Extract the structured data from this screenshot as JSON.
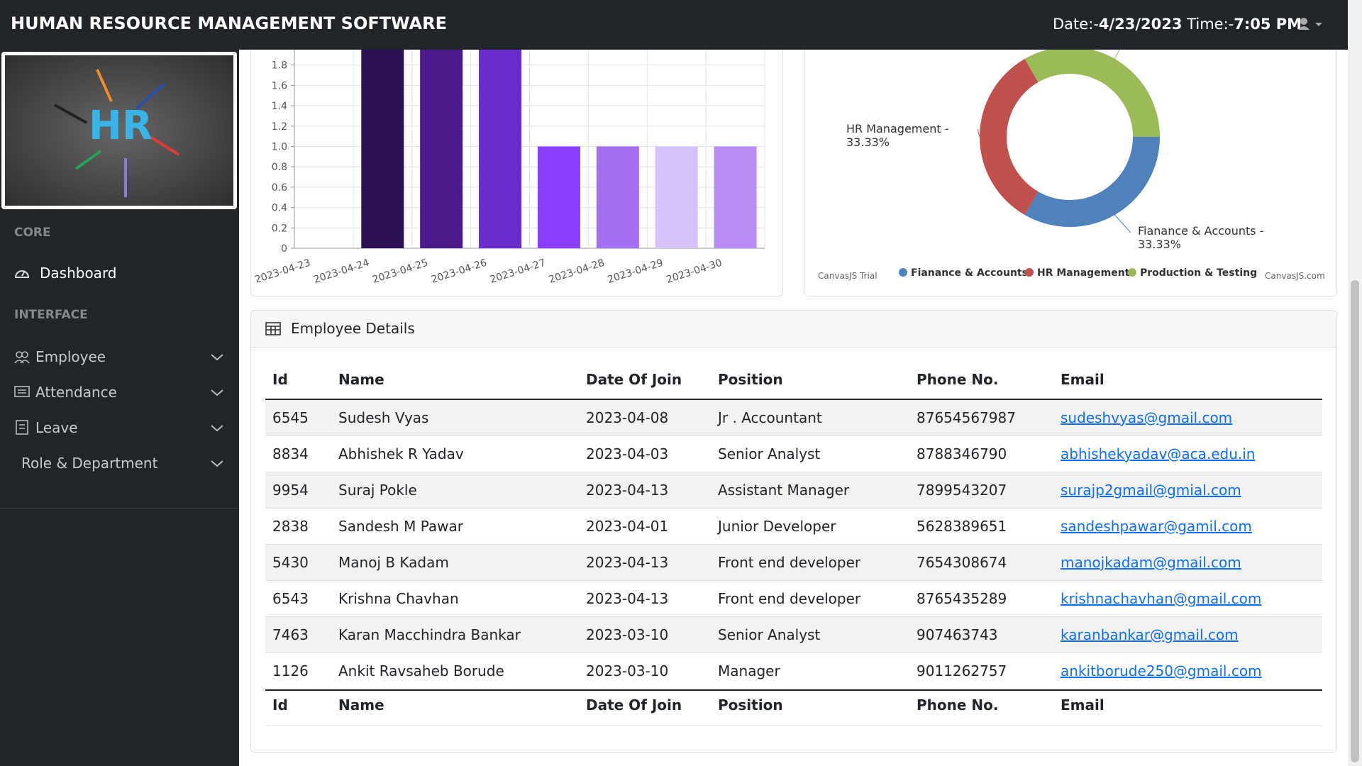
{
  "header": {
    "title": "HUMAN RESOURCE MANAGEMENT SOFTWARE",
    "date_label": "Date:-",
    "date": "4/23/2023",
    "time_label": "Time:-",
    "time": "7:05 PM"
  },
  "sidebar": {
    "logo_text": "HR",
    "sections": [
      {
        "heading": "CORE",
        "items": [
          "Dashboard"
        ]
      },
      {
        "heading": "INTERFACE",
        "items": [
          "Employee",
          "Attendance",
          "Leave",
          "Role & Department"
        ]
      }
    ]
  },
  "chart_data": [
    {
      "type": "bar",
      "categories": [
        "2023-04-23",
        "2023-04-24",
        "2023-04-25",
        "2023-04-26",
        "2023-04-27",
        "2023-04-28",
        "2023-04-29",
        "2023-04-30"
      ],
      "values": [
        0,
        2,
        2,
        2,
        1,
        1,
        1,
        1
      ],
      "colors": [
        "#1f0a3d",
        "#2c1157",
        "#4a1a8a",
        "#6a2ccc",
        "#8b3dff",
        "#a36ef2",
        "#d6c3fb",
        "#ba8cf7"
      ],
      "ylim": [
        0,
        2
      ],
      "yticks": [
        0,
        0.2,
        0.4,
        0.6,
        0.8,
        {
          "value": 1,
          "label": "1.0"
        },
        1.2,
        1.4,
        1.6,
        1.8
      ],
      "grid": true
    },
    {
      "type": "doughnut",
      "categories": [
        "Fianance & Accounts",
        "HR Management",
        "Production & Testing"
      ],
      "values": [
        33.33,
        33.33,
        33.33
      ],
      "colors": [
        "#4f81bc",
        "#c0504d",
        "#9bbb59"
      ],
      "index_labels": [
        "Fianance & Accounts - 33.33%",
        "HR Management - 33.33%"
      ],
      "watermark": "CanvasJS Trial",
      "credit": "CanvasJS.com"
    }
  ],
  "table": {
    "title": "Employee Details",
    "columns": [
      "Id",
      "Name",
      "Date Of Join",
      "Position",
      "Phone No.",
      "Email"
    ],
    "rows": [
      [
        "6545",
        "Sudesh Vyas",
        "2023-04-08",
        "Jr . Accountant",
        "87654567987",
        "sudeshvyas@gmail.com"
      ],
      [
        "8834",
        "Abhishek R Yadav",
        "2023-04-03",
        "Senior Analyst",
        "8788346790",
        "abhishekyadav@aca.edu.in"
      ],
      [
        "9954",
        "Suraj Pokle",
        "2023-04-13",
        "Assistant Manager",
        "7899543207",
        "surajp2gmail@gmial.com"
      ],
      [
        "2838",
        "Sandesh M Pawar",
        "2023-04-01",
        "Junior Developer",
        "5628389651",
        "sandeshpawar@gamil.com"
      ],
      [
        "5430",
        "Manoj B Kadam",
        "2023-04-13",
        "Front end developer",
        "7654308674",
        "manojkadam@gmail.com"
      ],
      [
        "6543",
        "Krishna Chavhan",
        "2023-04-13",
        "Front end developer",
        "8765435289",
        "krishnachavhan@gmail.com"
      ],
      [
        "7463",
        "Karan Macchindra Bankar",
        "2023-03-10",
        "Senior Analyst",
        "907463743",
        "karanbankar@gmail.com"
      ],
      [
        "1126",
        "Ankit Ravsaheb Borude",
        "2023-03-10",
        "Manager",
        "9011262757",
        "ankitborude250@gmail.com"
      ]
    ]
  }
}
